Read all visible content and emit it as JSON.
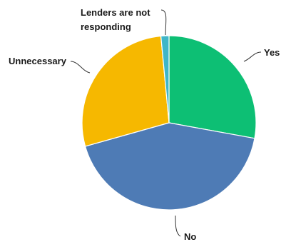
{
  "chart_data": {
    "type": "pie",
    "title": "",
    "slices": [
      {
        "label": "Yes",
        "value": 28,
        "color": "#0dbf74"
      },
      {
        "label": "No",
        "value": 43,
        "color": "#4e7bb5"
      },
      {
        "label": "Unnecessary",
        "value": 28,
        "color": "#f6b800"
      },
      {
        "label": "Lenders are not responding",
        "label_lines": [
          "Lenders are not",
          "responding"
        ],
        "value": 1.5,
        "color": "#3fb6c8"
      }
    ]
  }
}
